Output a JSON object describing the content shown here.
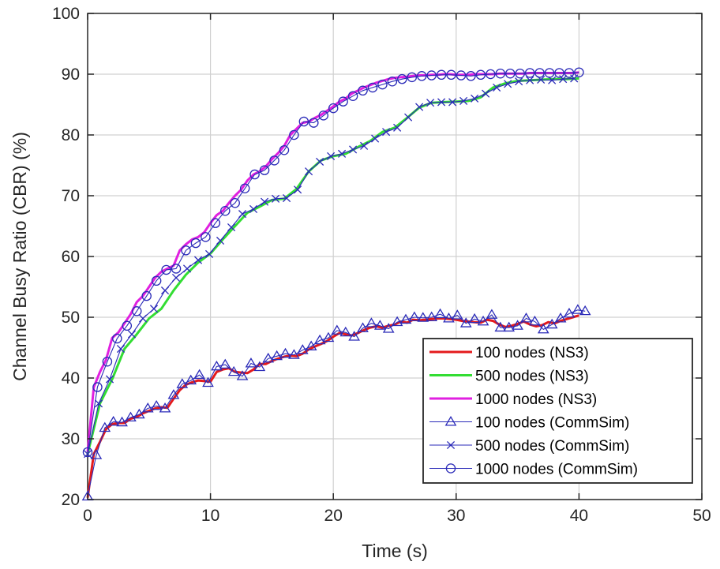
{
  "chart_data": {
    "type": "line",
    "title": "",
    "xlabel": "Time (s)",
    "ylabel": "Channel Busy Ratio (CBR) (%)",
    "xlim": [
      0,
      50
    ],
    "ylim": [
      20,
      100
    ],
    "xticks": [
      "0",
      "10",
      "20",
      "30",
      "40",
      "50"
    ],
    "yticks": [
      "20",
      "30",
      "40",
      "50",
      "60",
      "70",
      "80",
      "90",
      "100"
    ],
    "grid": true,
    "legend_position": "bottom-right",
    "series": [
      {
        "name": "100 nodes (NS3)",
        "color": "#e41a1c",
        "marker": "none",
        "x": [
          0,
          0.5,
          1,
          1.5,
          2,
          2.5,
          3,
          3.5,
          4,
          4.5,
          5,
          5.5,
          6,
          6.5,
          7,
          7.5,
          8,
          8.5,
          9,
          9.5,
          10,
          10.5,
          11,
          11.5,
          12,
          12.5,
          13,
          13.5,
          14,
          14.5,
          15,
          15.5,
          16,
          16.5,
          17,
          17.5,
          18,
          18.5,
          19,
          19.5,
          20,
          20.5,
          21,
          21.5,
          22,
          22.5,
          23,
          23.5,
          24,
          24.5,
          25,
          25.5,
          26,
          26.5,
          27,
          27.5,
          28,
          28.5,
          29,
          29.5,
          30,
          30.5,
          31,
          31.5,
          32,
          32.5,
          33,
          33.5,
          34,
          34.5,
          35,
          35.5,
          36,
          36.5,
          37,
          37.5,
          38,
          38.5,
          39,
          39.5,
          40
        ],
        "y": [
          20.3,
          27.5,
          29.5,
          31.6,
          32.4,
          32.6,
          32.6,
          33.3,
          33.6,
          34.2,
          34.6,
          35.0,
          35.2,
          35.1,
          36.6,
          38.0,
          38.9,
          39.3,
          39.6,
          39.5,
          39.4,
          41.0,
          41.4,
          41.6,
          41.0,
          40.9,
          40.8,
          41.4,
          42.3,
          42.3,
          42.8,
          43.2,
          43.5,
          43.7,
          43.6,
          44.0,
          44.7,
          45.2,
          45.6,
          46.1,
          46.8,
          47.4,
          47.2,
          47.0,
          47.4,
          47.9,
          48.3,
          48.5,
          48.3,
          48.6,
          48.8,
          49.3,
          49.1,
          49.6,
          49.5,
          49.6,
          49.7,
          49.8,
          49.8,
          49.7,
          49.6,
          49.4,
          49.3,
          49.2,
          49.1,
          49.6,
          49.4,
          48.8,
          48.4,
          48.6,
          48.9,
          49.3,
          48.8,
          48.5,
          48.7,
          49.2,
          49.0,
          49.4,
          49.7,
          50.0,
          50.3
        ]
      },
      {
        "name": "500 nodes (NS3)",
        "color": "#33dd33",
        "marker": "none",
        "x": [
          0,
          1,
          2,
          3,
          4,
          5,
          6,
          7,
          8,
          9,
          10,
          11,
          12,
          13,
          14,
          15,
          16,
          17,
          18,
          19,
          20,
          21,
          22,
          23,
          24,
          25,
          26,
          27,
          28,
          29,
          30,
          31,
          32,
          33,
          34,
          35,
          36,
          37,
          38,
          39,
          40
        ],
        "y": [
          27.5,
          35.8,
          39.8,
          44.8,
          47.2,
          49.8,
          51.4,
          54.4,
          57.0,
          59.0,
          60.5,
          62.8,
          65.0,
          67.2,
          68.2,
          69.3,
          69.5,
          71.1,
          74.0,
          75.8,
          76.5,
          76.9,
          78.0,
          79.0,
          80.5,
          81.2,
          82.8,
          84.5,
          85.3,
          85.4,
          85.5,
          85.6,
          86.2,
          87.8,
          88.5,
          88.9,
          89.0,
          89.1,
          89.2,
          89.2,
          89.3
        ]
      },
      {
        "name": "1000 nodes (NS3)",
        "color": "#e020e0",
        "marker": "none",
        "x": [
          0,
          0.5,
          1,
          1.5,
          2,
          2.5,
          3,
          3.5,
          4,
          4.5,
          5,
          5.5,
          6,
          6.5,
          7,
          7.5,
          8,
          8.5,
          9,
          9.5,
          10,
          10.5,
          11,
          11.5,
          12,
          12.5,
          13,
          13.5,
          14,
          14.5,
          15,
          15.5,
          16,
          16.5,
          17,
          17.5,
          18,
          18.5,
          19,
          19.5,
          20,
          20.5,
          21,
          21.5,
          22,
          22.5,
          23,
          23.5,
          24,
          24.5,
          25,
          25.5,
          26,
          26.5,
          27,
          27.5,
          28,
          28.5,
          29,
          29.5,
          30,
          30.5,
          31,
          31.5,
          32,
          32.5,
          33,
          33.5,
          34,
          34.5,
          35,
          35.5,
          36,
          36.5,
          37,
          37.5,
          38,
          38.5,
          39,
          39.5,
          40
        ],
        "y": [
          27.8,
          38.5,
          41.0,
          43.0,
          46.6,
          47.5,
          49.0,
          50.5,
          52.5,
          53.5,
          55.0,
          56.5,
          57.5,
          58.0,
          58.5,
          61.0,
          62.0,
          62.8,
          63.2,
          64.0,
          65.5,
          66.8,
          67.5,
          68.8,
          70.0,
          71.0,
          72.5,
          73.5,
          74.0,
          74.8,
          76.0,
          77.0,
          78.2,
          80.0,
          81.0,
          82.0,
          82.2,
          82.8,
          83.3,
          84.0,
          84.7,
          85.5,
          86.0,
          86.8,
          87.3,
          87.8,
          88.2,
          88.6,
          88.9,
          89.2,
          89.4,
          89.5,
          89.6,
          89.7,
          89.8,
          89.8,
          89.9,
          89.9,
          90.0,
          90.0,
          89.9,
          89.9,
          89.9,
          90.0,
          90.0,
          90.0,
          90.0,
          90.1,
          90.1,
          90.1,
          90.1,
          90.1,
          90.2,
          90.2,
          90.2,
          90.2,
          90.2,
          90.2,
          90.2,
          90.2,
          90.3
        ]
      },
      {
        "name": "100 nodes (CommSim)",
        "color": "#2a2ab8",
        "marker": "triangle",
        "x": [
          0,
          0.7,
          1.4,
          2.1,
          2.8,
          3.5,
          4.2,
          4.9,
          5.6,
          6.3,
          7.0,
          7.7,
          8.4,
          9.1,
          9.8,
          10.5,
          11.2,
          11.9,
          12.6,
          13.3,
          14.0,
          14.7,
          15.4,
          16.1,
          16.8,
          17.5,
          18.2,
          18.9,
          19.6,
          20.3,
          21.0,
          21.7,
          22.4,
          23.1,
          23.8,
          24.5,
          25.2,
          25.9,
          26.6,
          27.3,
          28.0,
          28.7,
          29.4,
          30.1,
          30.8,
          31.5,
          32.2,
          32.9,
          33.6,
          34.3,
          35.0,
          35.7,
          36.4,
          37.1,
          37.8,
          38.5,
          39.2,
          39.9,
          40.5
        ],
        "y": [
          20.5,
          27.3,
          31.8,
          32.8,
          32.7,
          33.5,
          34.0,
          35.0,
          35.4,
          35.0,
          37.2,
          39.0,
          39.6,
          40.5,
          39.2,
          41.9,
          42.2,
          41.0,
          40.3,
          42.4,
          41.8,
          43.2,
          43.6,
          44.0,
          43.8,
          44.6,
          45.2,
          46.2,
          46.6,
          47.8,
          47.5,
          46.8,
          48.2,
          49.0,
          48.6,
          48.1,
          49.2,
          49.6,
          50.0,
          49.9,
          50.0,
          50.5,
          49.8,
          50.3,
          49.0,
          49.7,
          49.3,
          50.4,
          48.3,
          48.3,
          48.6,
          49.8,
          49.3,
          48.0,
          48.8,
          49.8,
          50.6,
          51.2,
          51.0
        ]
      },
      {
        "name": "500 nodes (CommSim)",
        "color": "#2a2ab8",
        "marker": "x",
        "x": [
          0,
          0.9,
          1.8,
          2.7,
          3.6,
          4.5,
          5.4,
          6.3,
          7.2,
          8.1,
          9.0,
          9.9,
          10.8,
          11.7,
          12.6,
          13.5,
          14.4,
          15.3,
          16.2,
          17.1,
          18.0,
          18.9,
          19.8,
          20.7,
          21.6,
          22.5,
          23.4,
          24.3,
          25.2,
          26.1,
          27.0,
          27.9,
          28.8,
          29.7,
          30.6,
          31.5,
          32.4,
          33.3,
          34.2,
          35.1,
          36.0,
          36.9,
          37.8,
          38.7,
          39.6
        ],
        "y": [
          27.5,
          35.8,
          39.8,
          44.8,
          47.2,
          49.8,
          51.4,
          54.4,
          56.5,
          58.0,
          59.4,
          60.4,
          62.6,
          64.8,
          67.0,
          67.8,
          69.0,
          69.5,
          69.6,
          71.0,
          74.0,
          75.6,
          76.5,
          76.9,
          77.6,
          78.2,
          79.4,
          80.5,
          81.2,
          82.9,
          84.6,
          85.3,
          85.4,
          85.4,
          85.6,
          86.0,
          86.8,
          87.8,
          88.4,
          88.8,
          89.0,
          89.1,
          89.0,
          89.2,
          89.3
        ]
      },
      {
        "name": "1000 nodes (CommSim)",
        "color": "#2a2ab8",
        "marker": "circle",
        "x": [
          0,
          0.8,
          1.6,
          2.4,
          3.2,
          4.0,
          4.8,
          5.6,
          6.4,
          7.2,
          8.0,
          8.8,
          9.6,
          10.4,
          11.2,
          12.0,
          12.8,
          13.6,
          14.4,
          15.2,
          16.0,
          16.8,
          17.6,
          18.4,
          19.2,
          20.0,
          20.8,
          21.6,
          22.4,
          23.2,
          24.0,
          24.8,
          25.6,
          26.4,
          27.2,
          28.0,
          28.8,
          29.6,
          30.4,
          31.2,
          32.0,
          32.8,
          33.6,
          34.4,
          35.2,
          36.0,
          36.8,
          37.6,
          38.4,
          39.2,
          40.0
        ],
        "y": [
          27.8,
          38.5,
          42.7,
          46.5,
          48.6,
          51.0,
          53.5,
          56.0,
          57.8,
          58.0,
          61.0,
          62.2,
          63.2,
          65.5,
          67.5,
          68.8,
          71.2,
          73.5,
          74.2,
          75.8,
          77.5,
          80.0,
          82.2,
          82.0,
          83.2,
          84.4,
          85.5,
          86.4,
          87.3,
          87.8,
          88.3,
          88.8,
          89.2,
          89.5,
          89.7,
          89.8,
          89.9,
          89.9,
          89.8,
          89.7,
          89.9,
          90.0,
          90.1,
          90.1,
          90.1,
          90.2,
          90.2,
          90.2,
          90.2,
          90.2,
          90.3
        ]
      }
    ]
  }
}
